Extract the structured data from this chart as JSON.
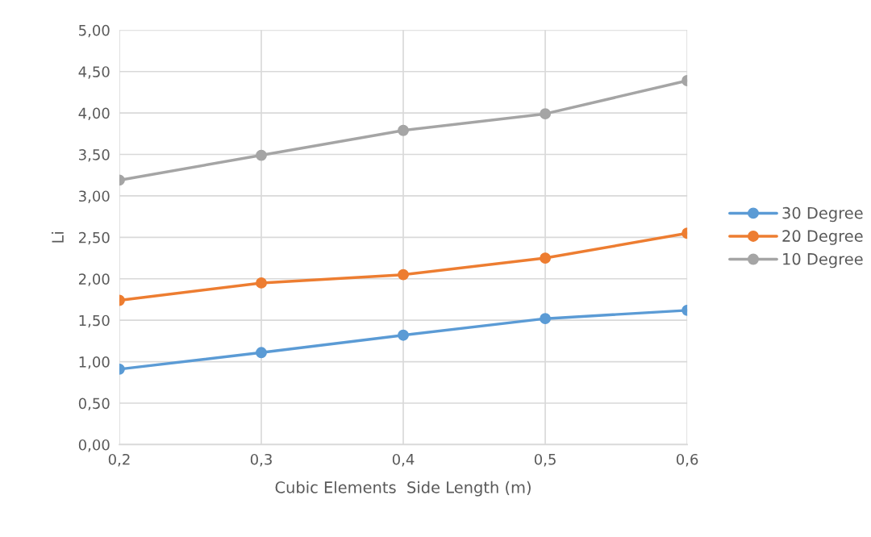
{
  "chart_data": {
    "type": "line",
    "xlabel": "Cubic Elements  Side Length (m)",
    "ylabel": "Li",
    "x": [
      0.2,
      0.3,
      0.4,
      0.5,
      0.6
    ],
    "series": [
      {
        "name": "30 Degree",
        "color": "#5b9bd5",
        "values": [
          0.91,
          1.11,
          1.32,
          1.52,
          1.62
        ]
      },
      {
        "name": "20 Degree",
        "color": "#ed7d31",
        "values": [
          1.74,
          1.95,
          2.05,
          2.25,
          2.55
        ]
      },
      {
        "name": "10 Degree",
        "color": "#a5a5a5",
        "values": [
          3.19,
          3.49,
          3.79,
          3.99,
          4.39
        ]
      }
    ],
    "xlim": [
      0.2,
      0.6
    ],
    "xticks": [
      {
        "value": 0.2,
        "label": "0,2"
      },
      {
        "value": 0.3,
        "label": "0,3"
      },
      {
        "value": 0.4,
        "label": "0,4"
      },
      {
        "value": 0.5,
        "label": "0,5"
      },
      {
        "value": 0.6,
        "label": "0,6"
      }
    ],
    "ylim": [
      0,
      5
    ],
    "yticks": [
      {
        "value": 0,
        "label": "0,00"
      },
      {
        "value": 0.5,
        "label": "0,50"
      },
      {
        "value": 1,
        "label": "1,00"
      },
      {
        "value": 1.5,
        "label": "1,50"
      },
      {
        "value": 2,
        "label": "2,00"
      },
      {
        "value": 2.5,
        "label": "2,50"
      },
      {
        "value": 3,
        "label": "3,00"
      },
      {
        "value": 3.5,
        "label": "3,50"
      },
      {
        "value": 4,
        "label": "4,00"
      },
      {
        "value": 4.5,
        "label": "4,50"
      },
      {
        "value": 5,
        "label": "5,00"
      }
    ],
    "grid": true,
    "legend": "right",
    "marker": "circle",
    "line_style": "solid"
  }
}
